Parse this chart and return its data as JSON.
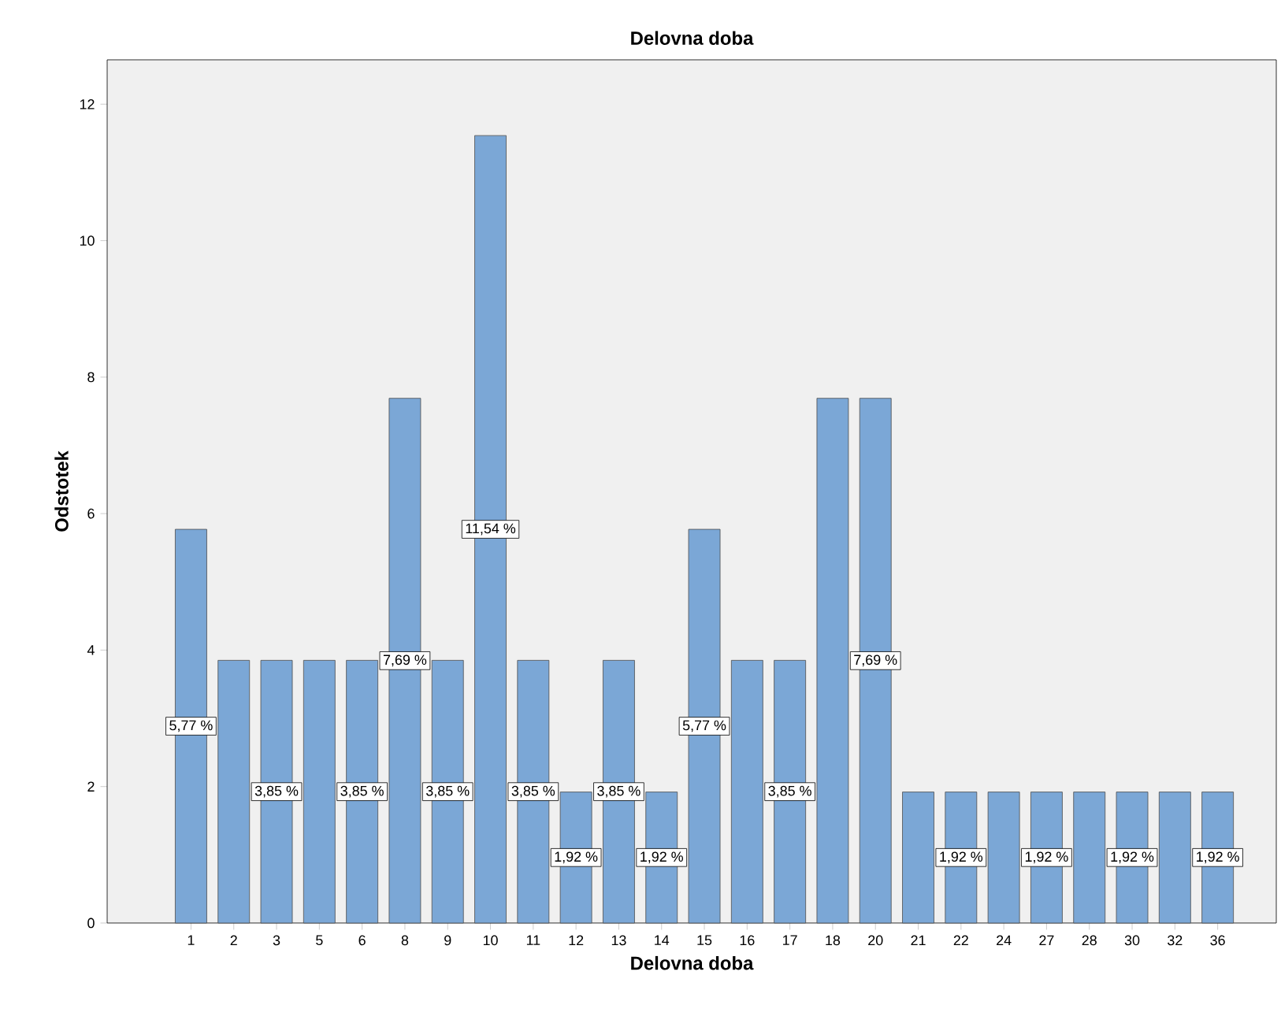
{
  "chart_data": {
    "type": "bar",
    "title": "Delovna doba",
    "xlabel": "Delovna doba",
    "ylabel": "Odstotek",
    "categories": [
      "1",
      "2",
      "3",
      "5",
      "6",
      "8",
      "9",
      "10",
      "11",
      "12",
      "13",
      "14",
      "15",
      "16",
      "17",
      "18",
      "20",
      "21",
      "22",
      "24",
      "27",
      "28",
      "30",
      "32",
      "36"
    ],
    "values": [
      5.77,
      3.85,
      3.85,
      3.85,
      3.85,
      7.69,
      3.85,
      11.54,
      3.85,
      1.92,
      3.85,
      1.92,
      5.77,
      3.85,
      3.85,
      7.69,
      7.69,
      1.92,
      1.92,
      1.92,
      1.92,
      1.92,
      1.92,
      1.92,
      1.92
    ],
    "value_labels": [
      "5,77 %",
      null,
      "3,85 %",
      null,
      "3,85 %",
      "7,69 %",
      "3,85 %",
      "11,54 %",
      "3,85 %",
      "1,92 %",
      "3,85 %",
      "1,92 %",
      "5,77 %",
      null,
      "3,85 %",
      null,
      "7,69 %",
      null,
      "1,92 %",
      null,
      "1,92 %",
      null,
      "1,92 %",
      null,
      "1,92 %"
    ],
    "color": "#7ba7d6",
    "ylim": [
      0,
      12.65
    ],
    "yticks": [
      0,
      2,
      4,
      6,
      8,
      10,
      12
    ],
    "grid": false
  }
}
